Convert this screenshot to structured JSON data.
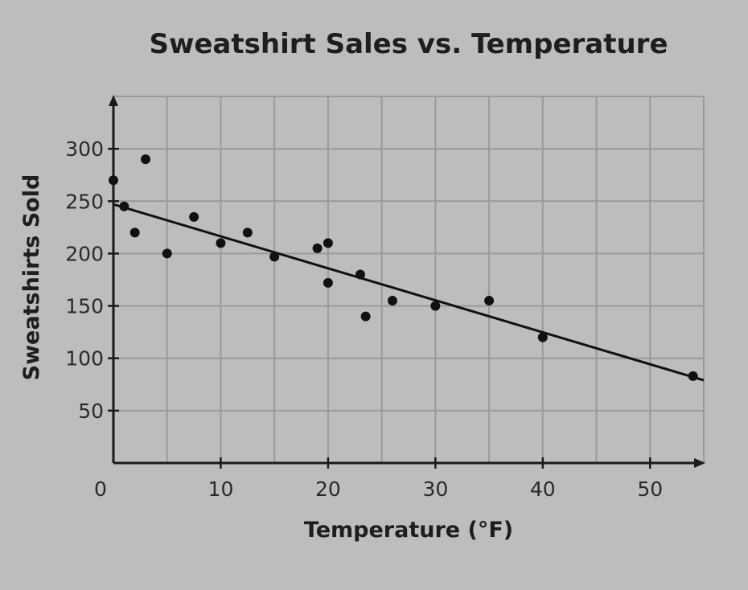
{
  "chart_data": {
    "type": "scatter",
    "title": "Sweatshirt Sales vs. Temperature",
    "xlabel": "Temperature (°F)",
    "ylabel": "Sweatshirts Sold",
    "xlim": [
      0,
      55
    ],
    "ylim": [
      0,
      350
    ],
    "x_ticks": [
      0,
      10,
      20,
      30,
      40,
      50
    ],
    "y_ticks": [
      50,
      100,
      150,
      200,
      250,
      300
    ],
    "grid": true,
    "points": [
      {
        "x": 0,
        "y": 270
      },
      {
        "x": 1,
        "y": 245
      },
      {
        "x": 2,
        "y": 220
      },
      {
        "x": 3,
        "y": 290
      },
      {
        "x": 5,
        "y": 200
      },
      {
        "x": 7.5,
        "y": 235
      },
      {
        "x": 10,
        "y": 210
      },
      {
        "x": 12.5,
        "y": 220
      },
      {
        "x": 15,
        "y": 197
      },
      {
        "x": 19,
        "y": 205
      },
      {
        "x": 20,
        "y": 210
      },
      {
        "x": 20,
        "y": 172
      },
      {
        "x": 23,
        "y": 180
      },
      {
        "x": 23.5,
        "y": 140
      },
      {
        "x": 26,
        "y": 155
      },
      {
        "x": 30,
        "y": 150
      },
      {
        "x": 35,
        "y": 155
      },
      {
        "x": 40,
        "y": 120
      },
      {
        "x": 54,
        "y": 83
      }
    ],
    "trend_line": {
      "x": [
        0,
        55
      ],
      "y": [
        247,
        79
      ]
    }
  }
}
